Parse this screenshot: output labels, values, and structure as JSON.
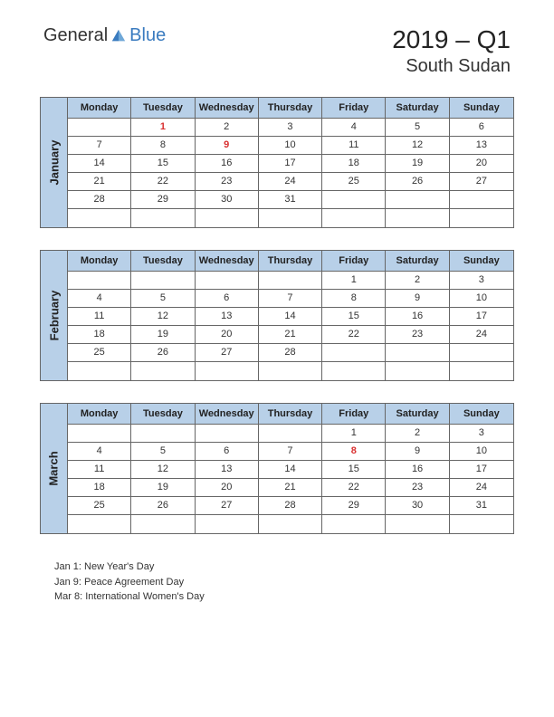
{
  "logo": {
    "general": "General",
    "blue": "Blue"
  },
  "period": "2019 – Q1",
  "country": "South Sudan",
  "colors": {
    "header_bg": "#b8d0e8",
    "border": "#666666",
    "holiday_text": "#d93030",
    "logo_gray": "#6b6b6b",
    "logo_blue": "#3a7bbf"
  },
  "day_headers": [
    "Monday",
    "Tuesday",
    "Wednesday",
    "Thursday",
    "Friday",
    "Saturday",
    "Sunday"
  ],
  "months": [
    {
      "name": "January",
      "weeks": [
        [
          "",
          "1",
          "2",
          "3",
          "4",
          "5",
          "6"
        ],
        [
          "7",
          "8",
          "9",
          "10",
          "11",
          "12",
          "13"
        ],
        [
          "14",
          "15",
          "16",
          "17",
          "18",
          "19",
          "20"
        ],
        [
          "21",
          "22",
          "23",
          "24",
          "25",
          "26",
          "27"
        ],
        [
          "28",
          "29",
          "30",
          "31",
          "",
          "",
          ""
        ],
        [
          "",
          "",
          "",
          "",
          "",
          "",
          ""
        ]
      ],
      "holidays": [
        "1",
        "9"
      ]
    },
    {
      "name": "February",
      "weeks": [
        [
          "",
          "",
          "",
          "",
          "1",
          "2",
          "3"
        ],
        [
          "4",
          "5",
          "6",
          "7",
          "8",
          "9",
          "10"
        ],
        [
          "11",
          "12",
          "13",
          "14",
          "15",
          "16",
          "17"
        ],
        [
          "18",
          "19",
          "20",
          "21",
          "22",
          "23",
          "24"
        ],
        [
          "25",
          "26",
          "27",
          "28",
          "",
          "",
          ""
        ],
        [
          "",
          "",
          "",
          "",
          "",
          "",
          ""
        ]
      ],
      "holidays": []
    },
    {
      "name": "March",
      "weeks": [
        [
          "",
          "",
          "",
          "",
          "1",
          "2",
          "3"
        ],
        [
          "4",
          "5",
          "6",
          "7",
          "8",
          "9",
          "10"
        ],
        [
          "11",
          "12",
          "13",
          "14",
          "15",
          "16",
          "17"
        ],
        [
          "18",
          "19",
          "20",
          "21",
          "22",
          "23",
          "24"
        ],
        [
          "25",
          "26",
          "27",
          "28",
          "29",
          "30",
          "31"
        ],
        [
          "",
          "",
          "",
          "",
          "",
          "",
          ""
        ]
      ],
      "holidays": [
        "8"
      ]
    }
  ],
  "holiday_list": [
    "Jan 1: New Year's Day",
    "Jan 9: Peace Agreement Day",
    "Mar 8: International Women's Day"
  ]
}
